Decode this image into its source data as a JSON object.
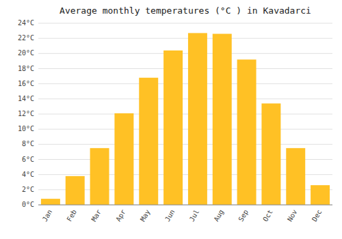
{
  "chart_data": {
    "type": "bar",
    "title": "Average monthly temperatures (°C ) in Kavadarci",
    "categories": [
      "Jan",
      "Feb",
      "Mar",
      "Apr",
      "May",
      "Jun",
      "Jul",
      "Aug",
      "Sep",
      "Oct",
      "Nov",
      "Dec"
    ],
    "values": [
      0.8,
      3.8,
      7.5,
      12.1,
      16.8,
      20.4,
      22.7,
      22.6,
      19.2,
      13.4,
      7.5,
      2.6
    ],
    "color": "#FFC125",
    "ylim": [
      0,
      24
    ],
    "yticks": [
      {
        "value": 0,
        "label": "0°C"
      },
      {
        "value": 2,
        "label": "2°C"
      },
      {
        "value": 4,
        "label": "4°C"
      },
      {
        "value": 6,
        "label": "6°C"
      },
      {
        "value": 8,
        "label": "8°C"
      },
      {
        "value": 10,
        "label": "10°C"
      },
      {
        "value": 12,
        "label": "12°C"
      },
      {
        "value": 14,
        "label": "14°C"
      },
      {
        "value": 16,
        "label": "16°C"
      },
      {
        "value": 18,
        "label": "18°C"
      },
      {
        "value": 20,
        "label": "20°C"
      },
      {
        "value": 22,
        "label": "22°C"
      },
      {
        "value": 24,
        "label": "24°C"
      }
    ],
    "grid": true
  }
}
